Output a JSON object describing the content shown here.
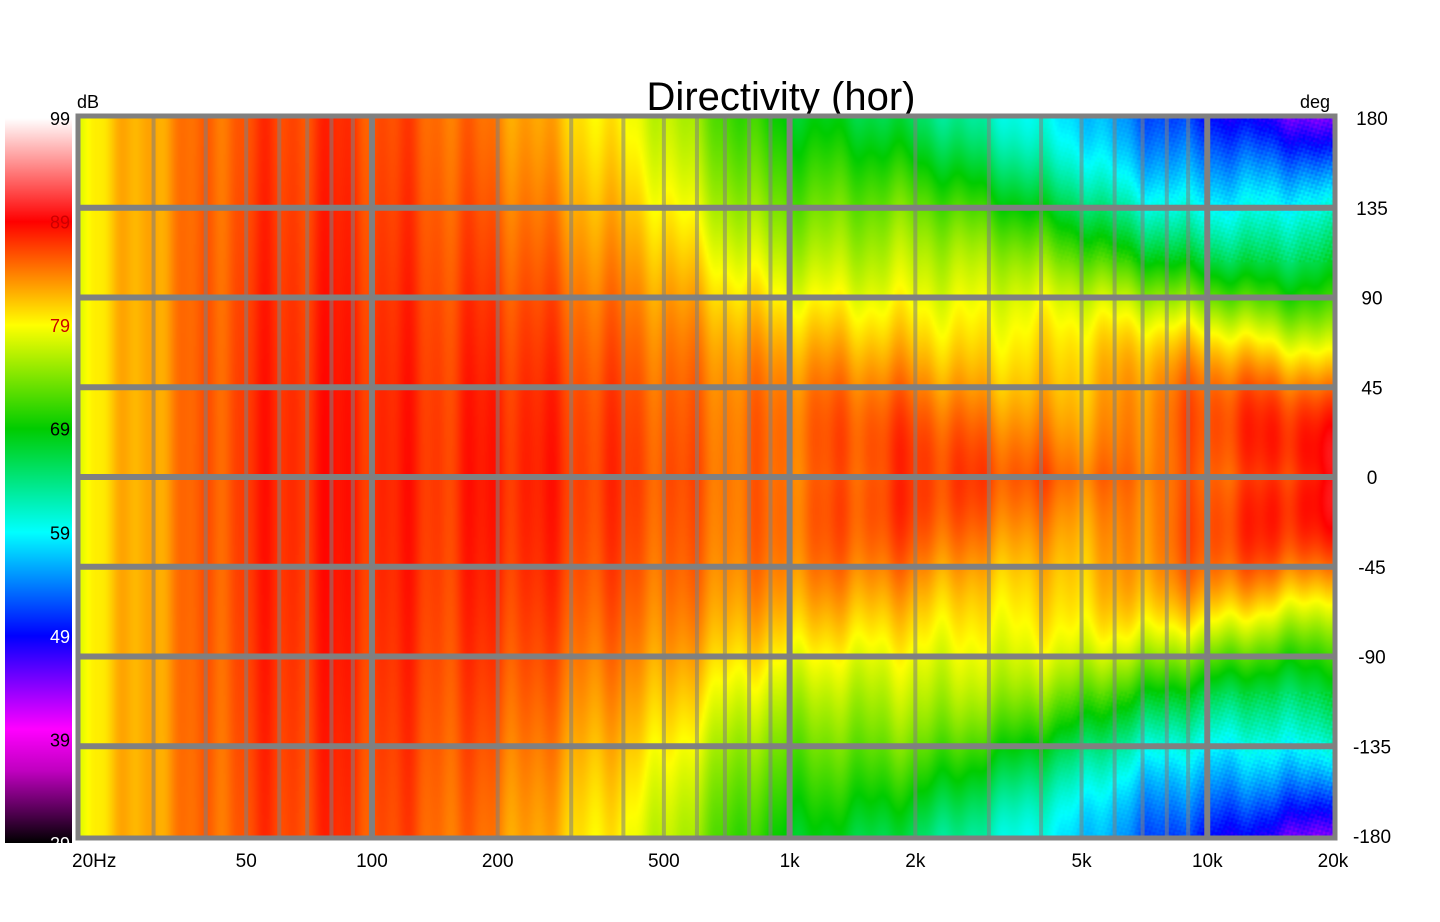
{
  "chart_data": {
    "type": "heatmap",
    "title": "Directivity (hor)",
    "colorbar": {
      "unit_label": "dB",
      "range": [
        29,
        99
      ],
      "ticks": [
        "99",
        "89",
        "79",
        "69",
        "59",
        "49",
        "39",
        "29"
      ],
      "tick_colors": [
        "#000000",
        "#cc0000",
        "#cc0000",
        "#000000",
        "#000000",
        "#ffffff",
        "#000000",
        "#ffffff"
      ],
      "stops": [
        {
          "v": 29,
          "c": "#000000"
        },
        {
          "v": 36,
          "c": "#c000c0"
        },
        {
          "v": 40,
          "c": "#ff00ff"
        },
        {
          "v": 49,
          "c": "#0000ff"
        },
        {
          "v": 59,
          "c": "#00ffff"
        },
        {
          "v": 69,
          "c": "#00cc00"
        },
        {
          "v": 79,
          "c": "#ffff00"
        },
        {
          "v": 89,
          "c": "#ff0000"
        },
        {
          "v": 99,
          "c": "#ffffff"
        }
      ]
    },
    "x_axis": {
      "scale": "log",
      "range": [
        20,
        20000
      ],
      "tick_values": [
        20,
        50,
        100,
        200,
        500,
        1000,
        2000,
        5000,
        10000,
        20000
      ],
      "tick_labels": [
        "20Hz",
        "50",
        "100",
        "200",
        "500",
        "1k",
        "2k",
        "5k",
        "10k",
        "20k"
      ]
    },
    "y_axis": {
      "unit_label": "deg",
      "range": [
        -180,
        180
      ],
      "tick_values": [
        180,
        135,
        90,
        45,
        0,
        -45,
        -90,
        -135,
        -180
      ],
      "tick_labels": [
        "180",
        "135",
        "90",
        "45",
        "0",
        "-45",
        "-90",
        "-135",
        "-180"
      ]
    },
    "grid": true,
    "grid_color": "#808080",
    "grid_y": [
      -135,
      -90,
      -45,
      0,
      45,
      90,
      135
    ],
    "grid_x": [
      30,
      40,
      50,
      60,
      70,
      80,
      90,
      100,
      200,
      300,
      400,
      500,
      600,
      700,
      800,
      900,
      1000,
      2000,
      3000,
      4000,
      5000,
      6000,
      7000,
      8000,
      9000,
      10000
    ],
    "grid_x_major": [
      100,
      1000,
      10000
    ],
    "level_model": {
      "freq_hz": [
        20,
        30,
        50,
        80,
        150,
        200,
        300,
        500,
        700,
        1000,
        2000,
        3000,
        5000,
        7000,
        10000,
        20000
      ],
      "on_axis_db": [
        79,
        83,
        87,
        88,
        87,
        88,
        87,
        86,
        85,
        85,
        86,
        85,
        85,
        86,
        87,
        87
      ],
      "off_axis_180_db": [
        79,
        83,
        86,
        87,
        85,
        84,
        81,
        77,
        72,
        68,
        66,
        63,
        58,
        52,
        48,
        44
      ]
    }
  }
}
